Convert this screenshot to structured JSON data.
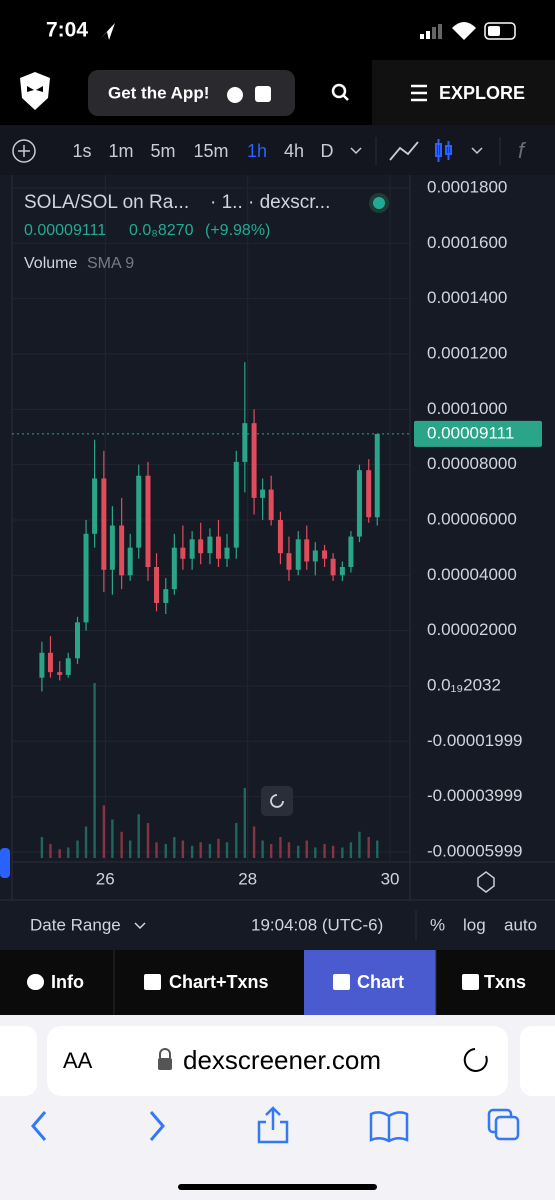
{
  "status_bar": {
    "time": "7:04"
  },
  "header": {
    "get_app": "Get the App!",
    "explore": "EXPLORE"
  },
  "toolbar": {
    "intervals": [
      "1s",
      "1m",
      "5m",
      "15m",
      "1h",
      "4h",
      "D"
    ],
    "active_interval_index": 4
  },
  "legend": {
    "symbol": "SOLA/SOL on Ra...",
    "interval": "· 1..",
    "source": "· dexscr...",
    "price": "0.00009111",
    "change": "0.0₈8270",
    "change_pct": "(+9.98%)",
    "volume": "Volume",
    "sma": "SMA 9"
  },
  "chart_data": {
    "type": "candlestick",
    "x": [
      25.11,
      25.23,
      25.36,
      25.48,
      25.61,
      25.73,
      25.85,
      25.98,
      26.1,
      26.23,
      26.35,
      26.47,
      26.6,
      26.72,
      26.85,
      26.97,
      27.09,
      27.22,
      27.34,
      27.47,
      27.59,
      27.71,
      27.84,
      27.96,
      28.09,
      28.21,
      28.33,
      28.46,
      28.58,
      28.71,
      28.83,
      28.95,
      29.08,
      29.2,
      29.33,
      29.45,
      29.57,
      29.7,
      29.82
    ],
    "open": [
      3e-06,
      1.2e-05,
      5e-06,
      4e-06,
      1e-05,
      2.3e-05,
      5.5e-05,
      7.5e-05,
      4.2e-05,
      5.8e-05,
      4e-05,
      5e-05,
      7.6e-05,
      4.3e-05,
      3e-05,
      3.5e-05,
      5e-05,
      4.6e-05,
      5.3e-05,
      4.8e-05,
      5.4e-05,
      4.6e-05,
      5e-05,
      8.1e-05,
      9.5e-05,
      6.8e-05,
      7.1e-05,
      6e-05,
      4.8e-05,
      4.2e-05,
      5.3e-05,
      4.5e-05,
      4.9e-05,
      4.6e-05,
      4e-05,
      4.3e-05,
      5.4e-05,
      7.8e-05,
      6.1e-05
    ],
    "high": [
      1.6e-05,
      1.8e-05,
      9e-06,
      1.2e-05,
      2.5e-05,
      6e-05,
      8.9e-05,
      8.5e-05,
      6.5e-05,
      6.8e-05,
      5.5e-05,
      8e-05,
      8.1e-05,
      4.8e-05,
      3.9e-05,
      5.5e-05,
      5.8e-05,
      5.6e-05,
      5.9e-05,
      5.7e-05,
      6e-05,
      5.5e-05,
      8.5e-05,
      0.000117,
      0.0001,
      7.5e-05,
      7.6e-05,
      6.3e-05,
      5.4e-05,
      5.6e-05,
      5.8e-05,
      5.2e-05,
      5.1e-05,
      4.8e-05,
      4.5e-05,
      5.6e-05,
      8e-05,
      8.2e-05,
      9.111e-05
    ],
    "low": [
      -2e-06,
      3e-06,
      2e-06,
      3e-06,
      8e-06,
      2e-05,
      5e-05,
      3.4e-05,
      3.3e-05,
      3.5e-05,
      3.8e-05,
      4.6e-05,
      3.8e-05,
      2.7e-05,
      2.6e-05,
      3.3e-05,
      4.2e-05,
      4.2e-05,
      4.4e-05,
      4.4e-05,
      4.3e-05,
      4.3e-05,
      4.6e-05,
      7e-05,
      6.2e-05,
      6e-05,
      5.8e-05,
      4.4e-05,
      3.8e-05,
      4e-05,
      4.2e-05,
      4e-05,
      4.3e-05,
      3.8e-05,
      3.8e-05,
      4.1e-05,
      5.2e-05,
      5.9e-05,
      5.8e-05
    ],
    "close": [
      1.2e-05,
      5e-06,
      4e-06,
      1e-05,
      2.3e-05,
      5.5e-05,
      7.5e-05,
      4.2e-05,
      5.8e-05,
      4e-05,
      5e-05,
      7.6e-05,
      4.3e-05,
      3e-05,
      3.5e-05,
      5e-05,
      4.6e-05,
      5.3e-05,
      4.8e-05,
      5.4e-05,
      4.6e-05,
      5e-05,
      8.1e-05,
      9.5e-05,
      6.8e-05,
      7.1e-05,
      6e-05,
      4.8e-05,
      4.2e-05,
      5.3e-05,
      4.5e-05,
      4.9e-05,
      4.6e-05,
      4e-05,
      4.3e-05,
      5.4e-05,
      7.8e-05,
      6.1e-05,
      9.111e-05
    ],
    "volume": [
      12,
      8,
      5,
      6,
      10,
      18,
      100,
      30,
      22,
      15,
      10,
      25,
      20,
      9,
      8,
      12,
      10,
      7,
      9,
      8,
      11,
      9,
      20,
      40,
      18,
      10,
      8,
      12,
      9,
      7,
      10,
      6,
      8,
      7,
      6,
      9,
      15,
      12,
      10
    ],
    "volume_ylim": [
      0,
      100
    ],
    "xlim": [
      24.69,
      30.28
    ],
    "xticks": [
      26,
      28,
      30
    ],
    "ylim": [
      -6.29e-05,
      0.0001847
    ],
    "yticks": [
      {
        "value": 0.00018,
        "label": "0.0001800"
      },
      {
        "value": 0.00016,
        "label": "0.0001600"
      },
      {
        "value": 0.00014,
        "label": "0.0001400"
      },
      {
        "value": 0.00012,
        "label": "0.0001200"
      },
      {
        "value": 0.0001,
        "label": "0.0001000"
      },
      {
        "value": 8e-05,
        "label": "0.00008000"
      },
      {
        "value": 6e-05,
        "label": "0.00006000"
      },
      {
        "value": 4e-05,
        "label": "0.00004000"
      },
      {
        "value": 2e-05,
        "label": "0.00002000"
      },
      {
        "value": 2.032e-20,
        "label": "0.0₁₉2032"
      },
      {
        "value": -1.999e-05,
        "label": "-0.00001999"
      },
      {
        "value": -3.999e-05,
        "label": "-0.00003999"
      },
      {
        "value": -5.999e-05,
        "label": "-0.00005999"
      }
    ],
    "price_line": {
      "value": 9.111e-05,
      "label": "0.00009111"
    },
    "up_color": "#2aa58a",
    "down_color": "#e04c5c",
    "grid": true
  },
  "bottom_bar": {
    "date_range": "Date Range",
    "time": "19:04:08 (UTC-6)",
    "percent": "%",
    "log": "log",
    "auto": "auto"
  },
  "tabs": [
    "Info",
    "Chart+Txns",
    "Chart",
    "Txns"
  ],
  "active_tab": 2,
  "browser": {
    "text_size": "AA",
    "url": "dexscreener.com"
  }
}
